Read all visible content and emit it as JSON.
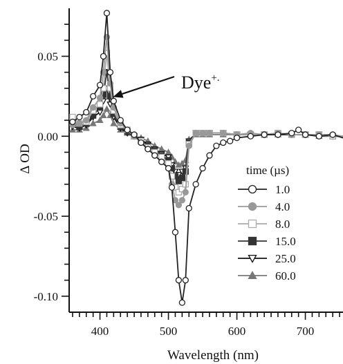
{
  "chart_data": {
    "type": "line",
    "title": "",
    "xlabel": "Wavelength   (nm)",
    "ylabel": "Δ OD",
    "xlim": [
      355,
      755
    ],
    "ylim": [
      -0.11,
      0.08
    ],
    "x_ticks": [
      400,
      500,
      600,
      700
    ],
    "x_tick_labels": [
      "400",
      "500",
      "600",
      "700"
    ],
    "y_ticks": [
      0.05,
      0.0,
      -0.05,
      -0.1
    ],
    "y_tick_labels": [
      "0.05",
      "0.00",
      "-0.05",
      "-0.10"
    ],
    "grid": false,
    "legend_title": "time (µs)",
    "legend_position": "right",
    "annotation": {
      "text": "Dye",
      "superscript": "+.",
      "points_to": [
        413,
        0.022
      ]
    },
    "series": [
      {
        "name": "1.0",
        "marker": "circle-open",
        "color": "#222222",
        "x": [
          360,
          370,
          380,
          390,
          400,
          405,
          410,
          415,
          420,
          430,
          440,
          450,
          460,
          470,
          480,
          490,
          500,
          505,
          510,
          515,
          520,
          525,
          530,
          540,
          550,
          560,
          570,
          580,
          590,
          600,
          620,
          640,
          660,
          680,
          690,
          700,
          720,
          740,
          755
        ],
        "y": [
          0.009,
          0.012,
          0.015,
          0.025,
          0.032,
          0.05,
          0.077,
          0.04,
          0.022,
          0.01,
          0.004,
          0.001,
          -0.004,
          -0.008,
          -0.012,
          -0.016,
          -0.02,
          -0.032,
          -0.06,
          -0.09,
          -0.104,
          -0.09,
          -0.045,
          -0.03,
          -0.02,
          -0.012,
          -0.006,
          -0.004,
          -0.003,
          -0.001,
          0.0,
          0.001,
          0.001,
          0.002,
          0.004,
          0.001,
          0.0,
          0.001,
          -0.001
        ]
      },
      {
        "name": "4.0",
        "marker": "circle-filled",
        "color": "#999999",
        "x": [
          360,
          370,
          380,
          390,
          400,
          405,
          410,
          415,
          420,
          430,
          440,
          450,
          460,
          470,
          480,
          490,
          500,
          505,
          510,
          515,
          520,
          525,
          530,
          540,
          550,
          560,
          580,
          600,
          620,
          640,
          660,
          680,
          700,
          720,
          740,
          755
        ],
        "y": [
          0.007,
          0.008,
          0.01,
          0.018,
          0.024,
          0.04,
          0.062,
          0.033,
          0.018,
          0.008,
          0.004,
          0.0,
          -0.004,
          -0.008,
          -0.012,
          -0.016,
          -0.02,
          -0.03,
          -0.04,
          -0.043,
          -0.04,
          -0.035,
          -0.006,
          0.002,
          0.002,
          0.002,
          0.002,
          0.001,
          0.002,
          0.001,
          0.002,
          0.001,
          0.001,
          0.001,
          0.001,
          0.0
        ]
      },
      {
        "name": "8.0",
        "marker": "square-open",
        "color": "#aaaaaa",
        "x": [
          360,
          370,
          380,
          390,
          400,
          405,
          410,
          415,
          420,
          430,
          440,
          450,
          460,
          470,
          480,
          490,
          500,
          505,
          510,
          515,
          520,
          525,
          530,
          540,
          550,
          560,
          580,
          600,
          620,
          640,
          660,
          680,
          700,
          720,
          740,
          755
        ],
        "y": [
          0.012,
          0.008,
          0.009,
          0.016,
          0.02,
          0.03,
          0.052,
          0.03,
          0.016,
          0.007,
          0.004,
          0.0,
          -0.003,
          -0.007,
          -0.01,
          -0.013,
          -0.017,
          -0.025,
          -0.032,
          -0.035,
          -0.033,
          -0.03,
          -0.005,
          0.002,
          0.002,
          0.002,
          0.002,
          0.001,
          0.001,
          0.001,
          0.002,
          0.001,
          0.001,
          0.001,
          0.0,
          0.0
        ]
      },
      {
        "name": "15.0",
        "marker": "square-filled",
        "color": "#333333",
        "x": [
          360,
          370,
          380,
          390,
          400,
          405,
          410,
          415,
          420,
          430,
          440,
          450,
          460,
          470,
          480,
          490,
          500,
          505,
          510,
          515,
          520,
          525,
          530,
          540,
          550,
          560,
          580,
          600,
          620,
          640,
          660,
          680,
          700,
          720,
          740,
          755
        ],
        "y": [
          0.008,
          0.006,
          0.008,
          0.013,
          0.018,
          0.026,
          0.04,
          0.025,
          0.014,
          0.006,
          0.003,
          0.0,
          -0.003,
          -0.006,
          -0.009,
          -0.012,
          -0.015,
          -0.02,
          -0.025,
          -0.028,
          -0.026,
          -0.022,
          -0.004,
          0.002,
          0.002,
          0.002,
          0.002,
          0.001,
          0.001,
          0.001,
          0.002,
          0.001,
          0.001,
          0.001,
          0.0,
          0.0
        ]
      },
      {
        "name": "25.0",
        "marker": "triangle-down-open",
        "color": "#111111",
        "x": [
          360,
          370,
          380,
          390,
          400,
          405,
          410,
          415,
          420,
          430,
          440,
          450,
          460,
          470,
          480,
          490,
          500,
          505,
          510,
          515,
          520,
          525,
          530,
          540,
          550,
          560,
          580,
          600,
          620,
          640,
          660,
          680,
          700,
          720,
          740,
          755
        ],
        "y": [
          0.006,
          0.005,
          0.007,
          0.012,
          0.015,
          0.022,
          0.03,
          0.02,
          0.012,
          0.005,
          0.002,
          0.0,
          -0.002,
          -0.005,
          -0.008,
          -0.011,
          -0.013,
          -0.018,
          -0.022,
          -0.024,
          -0.022,
          -0.02,
          -0.003,
          0.002,
          0.002,
          0.002,
          0.002,
          0.001,
          0.001,
          0.001,
          0.001,
          0.001,
          0.001,
          0.001,
          0.0,
          0.0
        ]
      },
      {
        "name": "60.0",
        "marker": "triangle-up-filled",
        "color": "#777777",
        "x": [
          360,
          370,
          380,
          390,
          400,
          405,
          410,
          415,
          420,
          430,
          440,
          450,
          460,
          470,
          480,
          490,
          500,
          505,
          510,
          515,
          520,
          525,
          530,
          540,
          550,
          560,
          580,
          600,
          620,
          640,
          660,
          680,
          700,
          720,
          740,
          755
        ],
        "y": [
          0.004,
          0.004,
          0.005,
          0.008,
          0.01,
          0.013,
          0.017,
          0.013,
          0.008,
          0.004,
          0.002,
          0.0,
          -0.001,
          -0.003,
          -0.006,
          -0.008,
          -0.01,
          -0.013,
          -0.016,
          -0.018,
          -0.017,
          -0.015,
          -0.002,
          0.001,
          0.001,
          0.001,
          0.001,
          0.001,
          0.001,
          0.001,
          0.001,
          0.001,
          0.001,
          0.0,
          0.0,
          0.0
        ]
      }
    ]
  }
}
